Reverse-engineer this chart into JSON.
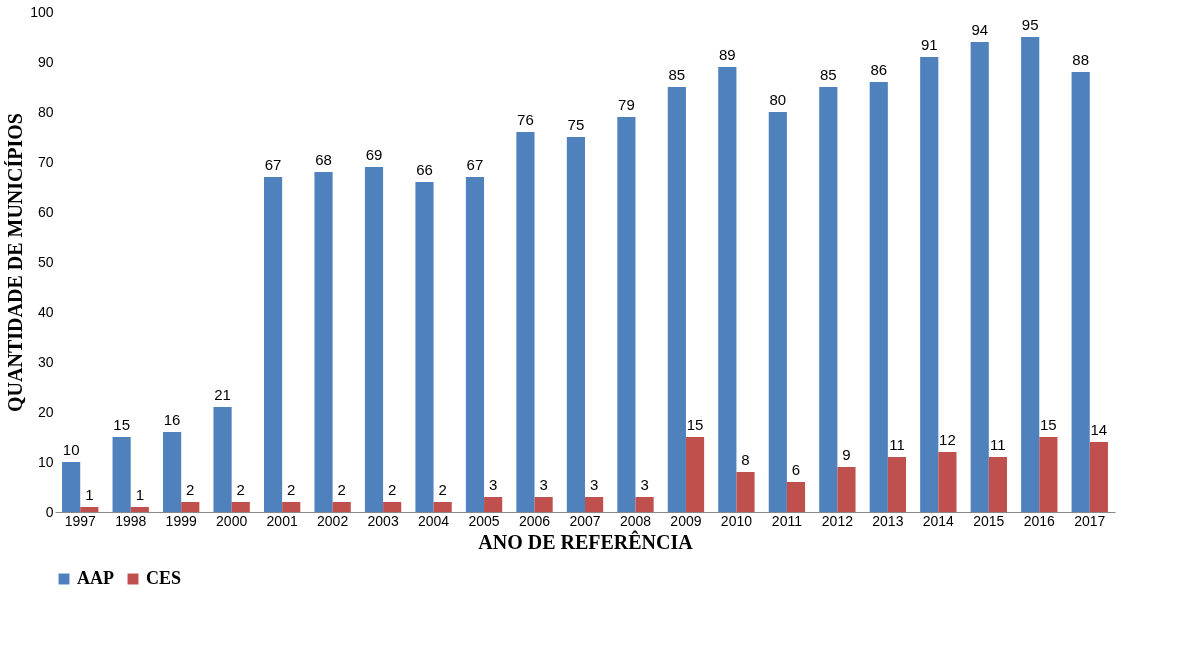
{
  "chart_data": {
    "type": "bar",
    "xlabel": "ANO DE REFERÊNCIA",
    "ylabel": "QUANTIDADE DE MUNICÍPIOS",
    "categories": [
      "1997",
      "1998",
      "1999",
      "2000",
      "2001",
      "2002",
      "2003",
      "2004",
      "2005",
      "2006",
      "2007",
      "2008",
      "2009",
      "2010",
      "2011",
      "2012",
      "2013",
      "2014",
      "2015",
      "2016",
      "2017"
    ],
    "series": [
      {
        "name": "AAP",
        "color": "#4f81bd",
        "values": [
          10,
          15,
          16,
          21,
          67,
          68,
          69,
          66,
          67,
          76,
          75,
          79,
          85,
          89,
          80,
          85,
          86,
          91,
          94,
          95,
          88
        ]
      },
      {
        "name": "CES",
        "color": "#c0504d",
        "values": [
          1,
          1,
          2,
          2,
          2,
          2,
          2,
          2,
          3,
          3,
          3,
          3,
          15,
          8,
          6,
          9,
          11,
          12,
          11,
          15,
          14
        ]
      }
    ],
    "ylim": [
      0,
      100
    ],
    "yticks": [
      0,
      10,
      20,
      30,
      40,
      50,
      60,
      70,
      80,
      90,
      100
    ],
    "data_labels": true,
    "grid": false,
    "legend": "bottom"
  }
}
